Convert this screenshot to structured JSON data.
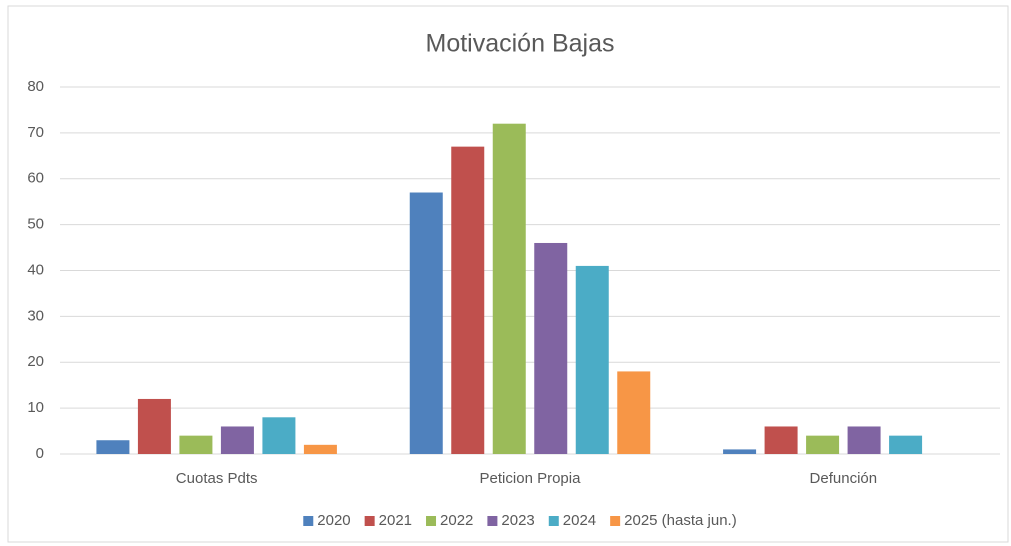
{
  "chart_data": {
    "type": "bar",
    "title": "Motivación Bajas",
    "categories": [
      "Cuotas Pdts",
      "Peticion Propia",
      "Defunción"
    ],
    "series": [
      {
        "name": "2020",
        "color": "#4f81bd",
        "values": [
          3,
          57,
          1
        ]
      },
      {
        "name": "2021",
        "color": "#c0504d",
        "values": [
          12,
          67,
          6
        ]
      },
      {
        "name": "2022",
        "color": "#9bbb59",
        "values": [
          4,
          72,
          4
        ]
      },
      {
        "name": "2023",
        "color": "#8064a2",
        "values": [
          6,
          46,
          6
        ]
      },
      {
        "name": "2024",
        "color": "#4bacc6",
        "values": [
          8,
          41,
          4
        ]
      },
      {
        "name": "2025 (hasta jun.)",
        "color": "#f79646",
        "values": [
          2,
          18,
          0
        ]
      }
    ],
    "ylim": [
      0,
      80
    ],
    "yticks": [
      0,
      10,
      20,
      30,
      40,
      50,
      60,
      70,
      80
    ],
    "grid": true,
    "legend": "bottom"
  }
}
